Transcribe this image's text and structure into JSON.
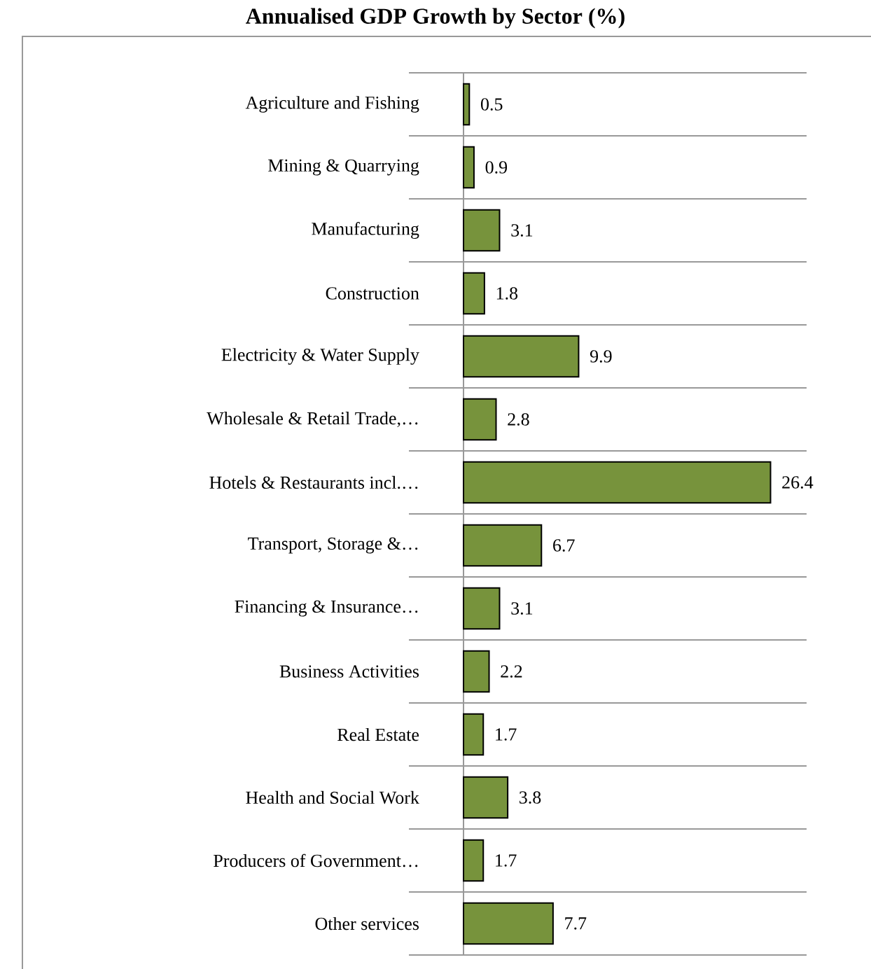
{
  "chart_data": {
    "type": "bar",
    "orientation": "horizontal",
    "title": "Annualised GDP Growth by Sector (%)",
    "categories": [
      "Agriculture and Fishing",
      "Mining & Quarrying",
      "Manufacturing",
      "Construction",
      "Electricity & Water Supply",
      "Wholesale & Retail Trade,…",
      "Hotels & Restaurants incl.…",
      "Transport, Storage &…",
      "Financing & Insurance…",
      "Business Activities",
      "Real Estate",
      "Health and Social Work",
      "Producers of Government…",
      "Other services"
    ],
    "values": [
      0.5,
      0.9,
      3.1,
      1.8,
      9.9,
      2.8,
      26.4,
      6.7,
      3.1,
      2.2,
      1.7,
      3.8,
      1.7,
      7.7
    ],
    "color": "#77933c",
    "data_labels": true,
    "grid": "y",
    "xlim": [
      0,
      29.5
    ]
  }
}
